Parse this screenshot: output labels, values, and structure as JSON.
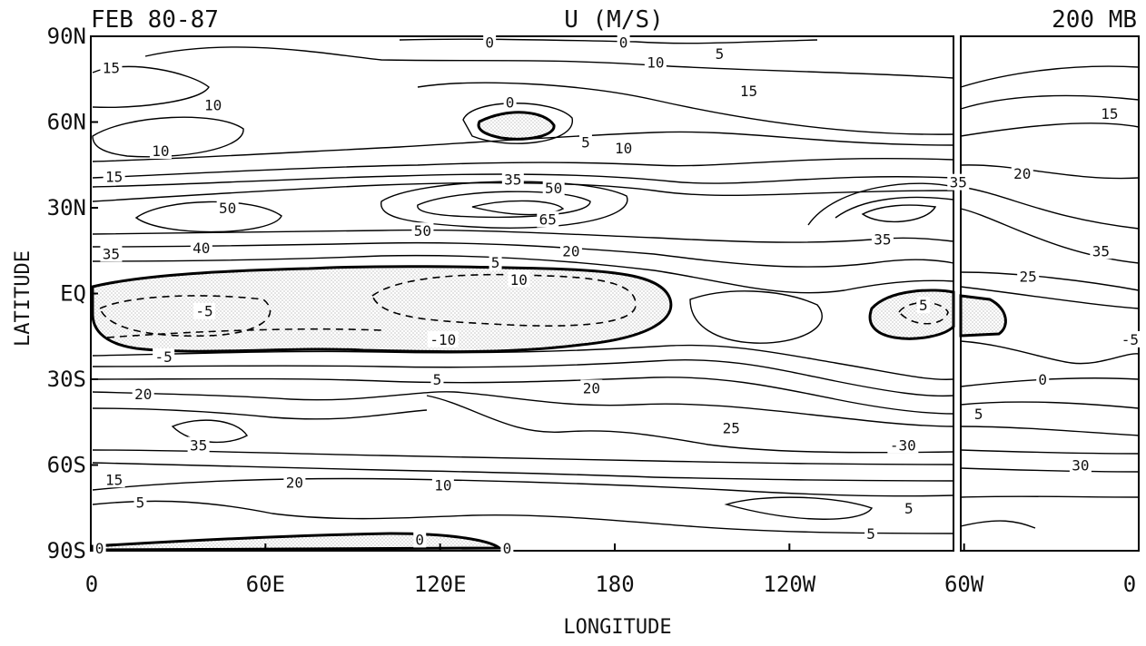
{
  "chart_data": {
    "type": "contour",
    "title_left": "FEB 80-87",
    "title_center": "U (M/S)",
    "title_right": "200 MB",
    "xlabel": "LONGITUDE",
    "ylabel": "LATITUDE",
    "x_ticks": [
      "0",
      "60E",
      "120E",
      "180",
      "120W",
      "60W",
      "0"
    ],
    "x_values": [
      0,
      60,
      120,
      180,
      240,
      300,
      360
    ],
    "y_ticks": [
      "90N",
      "60N",
      "30N",
      "EQ",
      "30S",
      "60S",
      "90S"
    ],
    "y_values": [
      90,
      60,
      30,
      0,
      -30,
      -60,
      -90
    ],
    "xlim": [
      0,
      360
    ],
    "ylim": [
      -90,
      90
    ],
    "negative_region_shading": "stippled",
    "negative_contours": "dashed",
    "zero_contour": "thick",
    "contour_labels": [
      {
        "text": "0",
        "lon": 137,
        "lat": 88
      },
      {
        "text": "0",
        "lon": 183,
        "lat": 88
      },
      {
        "text": "5",
        "lon": 216,
        "lat": 84
      },
      {
        "text": "10",
        "lon": 194,
        "lat": 81
      },
      {
        "text": "15",
        "lon": 7,
        "lat": 79
      },
      {
        "text": "15",
        "lon": 226,
        "lat": 71
      },
      {
        "text": "10",
        "lon": 42,
        "lat": 66
      },
      {
        "text": "0",
        "lon": 144,
        "lat": 67
      },
      {
        "text": "15",
        "lon": 350,
        "lat": 63
      },
      {
        "text": "5",
        "lon": 170,
        "lat": 53
      },
      {
        "text": "10",
        "lon": 183,
        "lat": 51
      },
      {
        "text": "10",
        "lon": 24,
        "lat": 50
      },
      {
        "text": "15",
        "lon": 8,
        "lat": 41
      },
      {
        "text": "20",
        "lon": 320,
        "lat": 42
      },
      {
        "text": "35",
        "lon": 145,
        "lat": 40
      },
      {
        "text": "50",
        "lon": 159,
        "lat": 37
      },
      {
        "text": "35",
        "lon": 298,
        "lat": 39
      },
      {
        "text": "50",
        "lon": 47,
        "lat": 30
      },
      {
        "text": "65",
        "lon": 157,
        "lat": 26
      },
      {
        "text": "50",
        "lon": 114,
        "lat": 22
      },
      {
        "text": "35",
        "lon": 7,
        "lat": 14
      },
      {
        "text": "40",
        "lon": 38,
        "lat": 16
      },
      {
        "text": "20",
        "lon": 165,
        "lat": 15
      },
      {
        "text": "35",
        "lon": 272,
        "lat": 19
      },
      {
        "text": "35",
        "lon": 347,
        "lat": 15
      },
      {
        "text": "5",
        "lon": 139,
        "lat": 11
      },
      {
        "text": "25",
        "lon": 322,
        "lat": 6
      },
      {
        "text": "10",
        "lon": 147,
        "lat": 5
      },
      {
        "text": "-5",
        "lon": 39,
        "lat": -6
      },
      {
        "text": "5",
        "lon": 286,
        "lat": -4
      },
      {
        "text": "-10",
        "lon": 121,
        "lat": -16
      },
      {
        "text": "-5",
        "lon": 25,
        "lat": -22
      },
      {
        "text": "-5",
        "lon": 357,
        "lat": -16
      },
      {
        "text": "0",
        "lon": 327,
        "lat": -30
      },
      {
        "text": "5",
        "lon": 119,
        "lat": -30
      },
      {
        "text": "20",
        "lon": 172,
        "lat": -33
      },
      {
        "text": "20",
        "lon": 18,
        "lat": -35
      },
      {
        "text": "5",
        "lon": 305,
        "lat": -42
      },
      {
        "text": "25",
        "lon": 220,
        "lat": -47
      },
      {
        "text": "35",
        "lon": 37,
        "lat": -53
      },
      {
        "text": "-30",
        "lon": 279,
        "lat": -53
      },
      {
        "text": "30",
        "lon": 340,
        "lat": -60
      },
      {
        "text": "15",
        "lon": 8,
        "lat": -65
      },
      {
        "text": "20",
        "lon": 70,
        "lat": -66
      },
      {
        "text": "10",
        "lon": 121,
        "lat": -67
      },
      {
        "text": "5",
        "lon": 17,
        "lat": -73
      },
      {
        "text": "5",
        "lon": 281,
        "lat": -75
      },
      {
        "text": "5",
        "lon": 268,
        "lat": -84
      },
      {
        "text": "0",
        "lon": 113,
        "lat": -86
      },
      {
        "text": "0",
        "lon": 143,
        "lat": -89
      },
      {
        "text": "0",
        "lon": 3,
        "lat": -89
      }
    ]
  }
}
